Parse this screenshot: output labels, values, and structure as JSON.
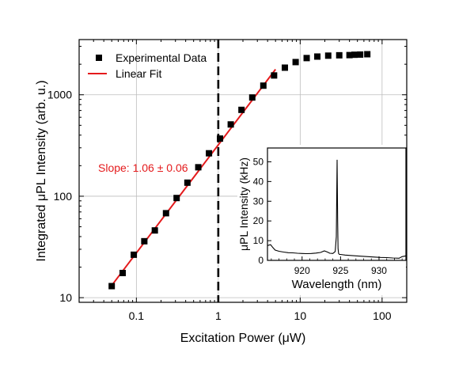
{
  "chart_data": [
    {
      "type": "scatter",
      "xscale": "log",
      "yscale": "log",
      "xlim": [
        0.02,
        200
      ],
      "ylim": [
        9,
        3500
      ],
      "xlabel": "Excitation Power (μW)",
      "ylabel": "Integrated μPL Intensity (arb. u.)",
      "xticks": [
        0.1,
        1,
        10,
        100
      ],
      "xtick_labels": [
        "0.1",
        "1",
        "10",
        "100"
      ],
      "yticks": [
        10,
        100,
        1000
      ],
      "ytick_labels": [
        "10",
        "100",
        "1000"
      ],
      "grid": true,
      "legend_position": "top-left",
      "series": [
        {
          "name": "Experimental Data",
          "marker": "square",
          "color": "#000000",
          "x": [
            0.05,
            0.068,
            0.093,
            0.125,
            0.168,
            0.23,
            0.31,
            0.42,
            0.57,
            0.77,
            1.05,
            1.42,
            1.92,
            2.6,
            3.55,
            4.8,
            6.5,
            8.8,
            12,
            16.2,
            22,
            30,
            40,
            46,
            54,
            66
          ],
          "y": [
            13,
            17.5,
            26.5,
            36,
            46,
            68,
            96,
            136,
            193,
            265,
            370,
            510,
            710,
            940,
            1230,
            1550,
            1850,
            2100,
            2300,
            2380,
            2430,
            2450,
            2460,
            2480,
            2490,
            2510
          ]
        },
        {
          "name": "Linear Fit",
          "line": true,
          "color": "#e41a1c",
          "x": [
            0.05,
            5
          ],
          "y": [
            13.2,
            1780
          ]
        }
      ],
      "annotations": [
        {
          "text": "Slope: 1.06 ± 0.06",
          "color": "#e41a1c"
        }
      ],
      "vlines": [
        {
          "x": 1,
          "style": "dashed",
          "color": "#000000"
        }
      ]
    },
    {
      "type": "line",
      "inset": true,
      "xlim": [
        915.5,
        933.5
      ],
      "ylim": [
        0,
        57
      ],
      "xlabel": "Wavelength (nm)",
      "ylabel": "μPL Intensity (kHz)",
      "xticks": [
        920,
        925,
        930
      ],
      "xtick_labels": [
        "920",
        "925",
        "930"
      ],
      "yticks": [
        0,
        10,
        20,
        30,
        40,
        50
      ],
      "ytick_labels": [
        "0",
        "10",
        "20",
        "30",
        "40",
        "50"
      ],
      "series": [
        {
          "color": "#000000",
          "x": [
            915.5,
            915.9,
            916.2,
            916.5,
            917,
            917.6,
            918.2,
            918.8,
            919.4,
            920,
            920.6,
            921.2,
            921.8,
            922.4,
            922.9,
            923.3,
            923.6,
            924,
            924.3,
            924.45,
            924.55,
            924.62,
            924.68,
            924.75,
            924.85,
            925,
            925.6,
            926.3,
            927,
            927.8,
            928.6,
            929.4,
            930.2,
            931,
            931.8,
            932.6,
            933,
            933.5
          ],
          "y": [
            7.5,
            8,
            6.5,
            5.2,
            4.6,
            4.2,
            3.9,
            3.8,
            3.6,
            3.5,
            3.4,
            3.5,
            3.7,
            4,
            4.8,
            4.2,
            3.6,
            3.5,
            4.5,
            12,
            51,
            20,
            6,
            3.5,
            3,
            3,
            2.7,
            2.5,
            2.3,
            2.1,
            1.9,
            1.7,
            1.5,
            1.4,
            1.2,
            1.1,
            1.9,
            2.3
          ]
        }
      ]
    }
  ]
}
